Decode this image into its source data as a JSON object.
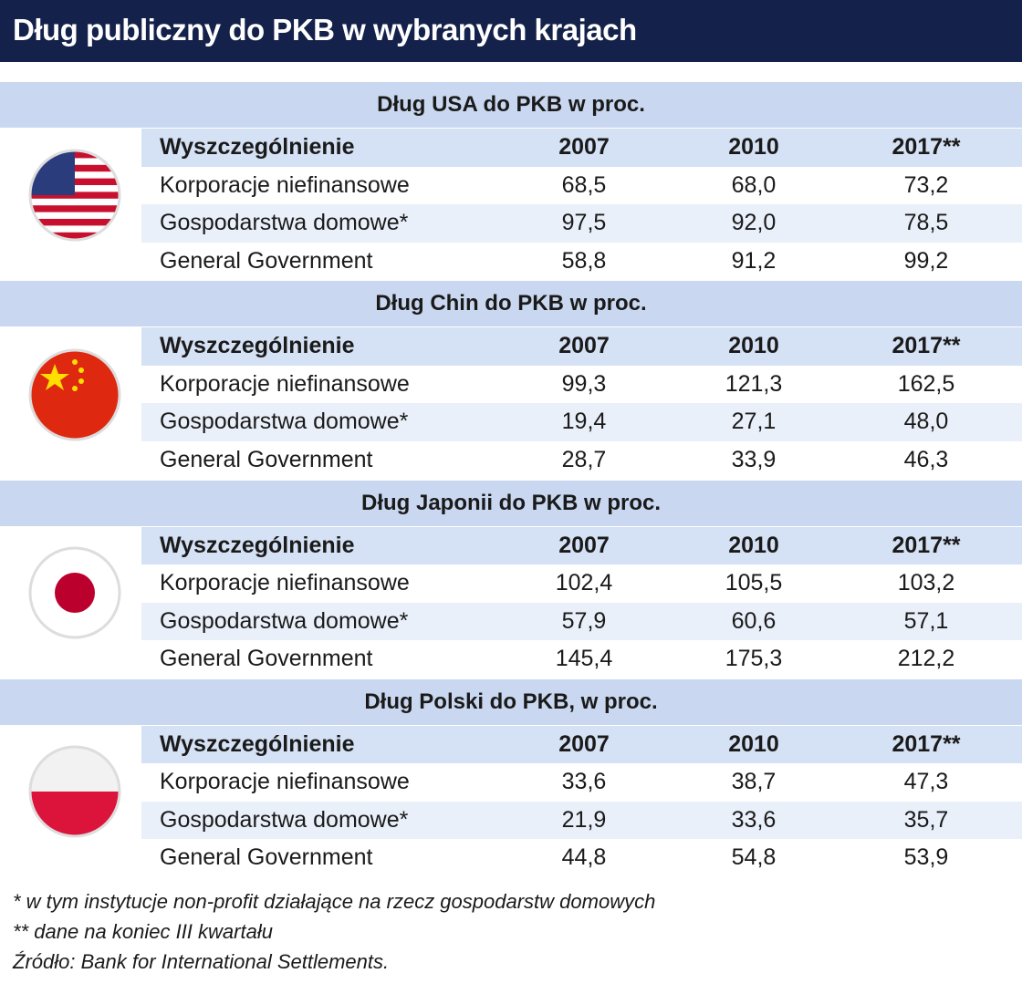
{
  "header": {
    "title": "Dług publiczny do PKB w wybranych krajach"
  },
  "sections": [
    {
      "title": "Dług USA do PKB w proc.",
      "columns": [
        "Wyszczególnienie",
        "2007",
        "2010",
        "2017**"
      ],
      "rows": [
        [
          "Korporacje niefinansowe",
          "68,5",
          "68,0",
          "73,2"
        ],
        [
          "Gospodarstwa domowe*",
          "97,5",
          "92,0",
          "78,5"
        ],
        [
          "General Government",
          "58,8",
          "91,2",
          "99,2"
        ]
      ]
    },
    {
      "title": "Dług Chin do PKB w proc.",
      "columns": [
        "Wyszczególnienie",
        "2007",
        "2010",
        "2017**"
      ],
      "rows": [
        [
          "Korporacje niefinansowe",
          "99,3",
          "121,3",
          "162,5"
        ],
        [
          "Gospodarstwa domowe*",
          "19,4",
          "27,1",
          "48,0"
        ],
        [
          "General Government",
          "28,7",
          "33,9",
          "46,3"
        ]
      ]
    },
    {
      "title": "Dług Japonii do PKB w proc.",
      "columns": [
        "Wyszczególnienie",
        "2007",
        "2010",
        "2017**"
      ],
      "rows": [
        [
          "Korporacje niefinansowe",
          "102,4",
          "105,5",
          "103,2"
        ],
        [
          "Gospodarstwa domowe*",
          "57,9",
          "60,6",
          "57,1"
        ],
        [
          "General Government",
          "145,4",
          "175,3",
          "212,2"
        ]
      ]
    },
    {
      "title": "Dług Polski do PKB, w proc.",
      "columns": [
        "Wyszczególnienie",
        "2007",
        "2010",
        "2017**"
      ],
      "rows": [
        [
          "Korporacje niefinansowe",
          "33,6",
          "38,7",
          "47,3"
        ],
        [
          "Gospodarstwa domowe*",
          "21,9",
          "33,6",
          "35,7"
        ],
        [
          "General Government",
          "44,8",
          "54,8",
          "53,9"
        ]
      ]
    }
  ],
  "footnotes": [
    "* w tym instytucje non-profit działające na rzecz gospodarstw domowych",
    "** dane na koniec III kwartału",
    "Źródło: Bank for International Settlements."
  ]
}
